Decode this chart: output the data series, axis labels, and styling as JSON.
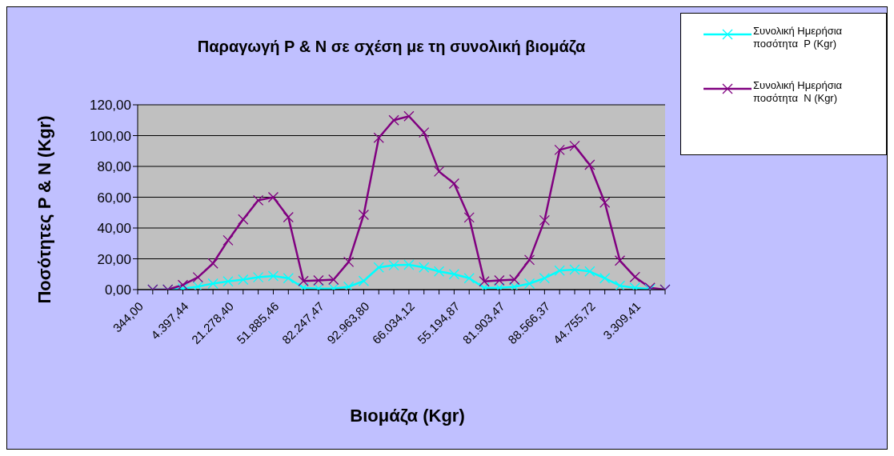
{
  "chart_data": {
    "type": "line",
    "title": "Παραγωγή P & N σε σχέση με τη συνολική βιομάζα",
    "xlabel": "Βιομάζα (Kgr)",
    "ylabel": "Ποσότητες P & N (Kgr)",
    "categories": [
      "344,00",
      null,
      null,
      "4.397,44",
      null,
      null,
      "21.278,40",
      null,
      null,
      "51.885,46",
      null,
      null,
      "82.247,47",
      null,
      null,
      "92.963,80",
      null,
      null,
      "66.034,12",
      null,
      null,
      "55.194,87",
      null,
      null,
      "81.903,47",
      null,
      null,
      "88.566,37",
      null,
      null,
      "44.755,72",
      null,
      null,
      "3.309,41",
      null,
      null
    ],
    "series": [
      {
        "name": "Συνολική Ημερήσια ποσότητα  P (Kgr)",
        "color": "#00ffff",
        "marker": "cross",
        "values": [
          null,
          0,
          0,
          0.7,
          2,
          3.9,
          5.3,
          6.5,
          8,
          8.8,
          7.4,
          1.2,
          0.7,
          0.7,
          1.8,
          5.6,
          14.4,
          15.8,
          16.1,
          14.4,
          11.8,
          10,
          7.4,
          1.2,
          1.2,
          1.8,
          3.9,
          7.4,
          12.3,
          13,
          11.8,
          7.4,
          2.5,
          1.2,
          0.4,
          0
        ]
      },
      {
        "name": "Συνολική Ημερήσια ποσότητα  N (Kgr)",
        "color": "#800080",
        "marker": "cross",
        "values": [
          null,
          0,
          0,
          3,
          8,
          17,
          32,
          45.6,
          58,
          60,
          47,
          5.6,
          6,
          6.5,
          18,
          48.6,
          98.6,
          110,
          112.6,
          102,
          76.7,
          68.8,
          46.8,
          5.3,
          6,
          6.5,
          19.3,
          45,
          90.7,
          93.3,
          81,
          56.5,
          18.8,
          8.2,
          1.2,
          0
        ]
      }
    ],
    "ylim": [
      0,
      120
    ],
    "yticks": [
      {
        "value": 0,
        "label": "0,00"
      },
      {
        "value": 20,
        "label": "20,00"
      },
      {
        "value": 40,
        "label": "40,00"
      },
      {
        "value": 60,
        "label": "60,00"
      },
      {
        "value": 80,
        "label": "80,00"
      },
      {
        "value": 100,
        "label": "100,00"
      },
      {
        "value": 120,
        "label": "120,00"
      }
    ],
    "grid": "y",
    "legend": "top right",
    "line_style": "solid"
  }
}
